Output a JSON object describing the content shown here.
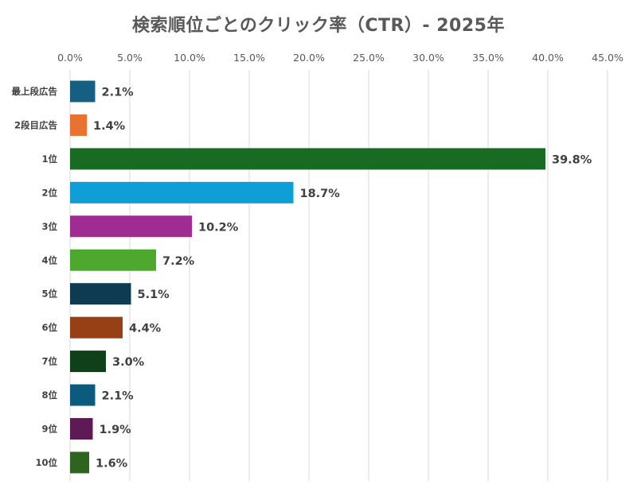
{
  "chart_data": {
    "type": "bar",
    "orientation": "horizontal",
    "title": "検索順位ごとのクリック率（CTR）- 2025年",
    "xlabel": "",
    "ylabel": "",
    "xlim": [
      0,
      45
    ],
    "tick_values": [
      0,
      5,
      10,
      15,
      20,
      25,
      30,
      35,
      40,
      45
    ],
    "tick_labels": [
      "0.0%",
      "5.0%",
      "10.0%",
      "15.0%",
      "20.0%",
      "25.0%",
      "30.0%",
      "35.0%",
      "40.0%",
      "45.0%"
    ],
    "axis_position": "top",
    "grid": true,
    "legend": "none",
    "categories": [
      "最上段広告",
      "2段目広告",
      "1位",
      "2位",
      "3位",
      "4位",
      "5位",
      "6位",
      "7位",
      "8位",
      "9位",
      "10位"
    ],
    "values": [
      2.1,
      1.4,
      39.8,
      18.7,
      10.2,
      7.2,
      5.1,
      4.4,
      3.0,
      2.1,
      1.9,
      1.6
    ],
    "data_labels": [
      "2.1%",
      "1.4%",
      "39.8%",
      "18.7%",
      "10.2%",
      "7.2%",
      "5.1%",
      "4.4%",
      "3.0%",
      "2.1%",
      "1.9%",
      "1.6%"
    ],
    "colors": [
      "#156082",
      "#e97132",
      "#196b24",
      "#0f9ed5",
      "#a02b93",
      "#4ea72e",
      "#0e3a52",
      "#974015",
      "#10401a",
      "#0c5b7e",
      "#5e1a55",
      "#2e6420"
    ]
  }
}
